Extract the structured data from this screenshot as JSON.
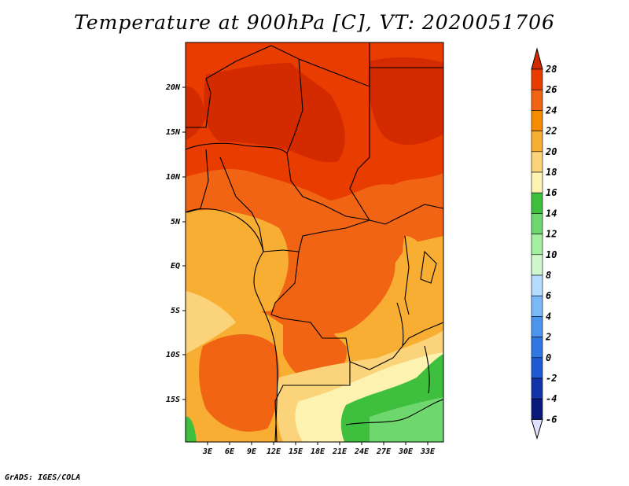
{
  "title": "Temperature at 900hPa [C], VT: 2020051706",
  "credit": "GrADS: IGES/COLA",
  "map": {
    "lon_labels": [
      "3E",
      "6E",
      "9E",
      "12E",
      "15E",
      "18E",
      "21E",
      "24E",
      "27E",
      "30E",
      "33E"
    ],
    "lat_labels": [
      "20N",
      "15N",
      "10N",
      "5N",
      "EQ",
      "5S",
      "10S",
      "15S"
    ]
  },
  "colorbar": {
    "levels": [
      "28",
      "26",
      "24",
      "22",
      "20",
      "18",
      "16",
      "14",
      "12",
      "10",
      "8",
      "6",
      "4",
      "2",
      "0",
      "-2",
      "-4",
      "-6"
    ],
    "colors": [
      "#d42a00",
      "#e83c00",
      "#f06414",
      "#f58c00",
      "#f8ae32",
      "#fad37a",
      "#fdf2b0",
      "#3ebf3e",
      "#6ed86e",
      "#a4eea0",
      "#d0f8cc",
      "#b4dcff",
      "#7ab8f8",
      "#4a96ee",
      "#2f78e4",
      "#1e5ad2",
      "#1234a8",
      "#0a1a7a",
      "#e0e0ff"
    ]
  }
}
